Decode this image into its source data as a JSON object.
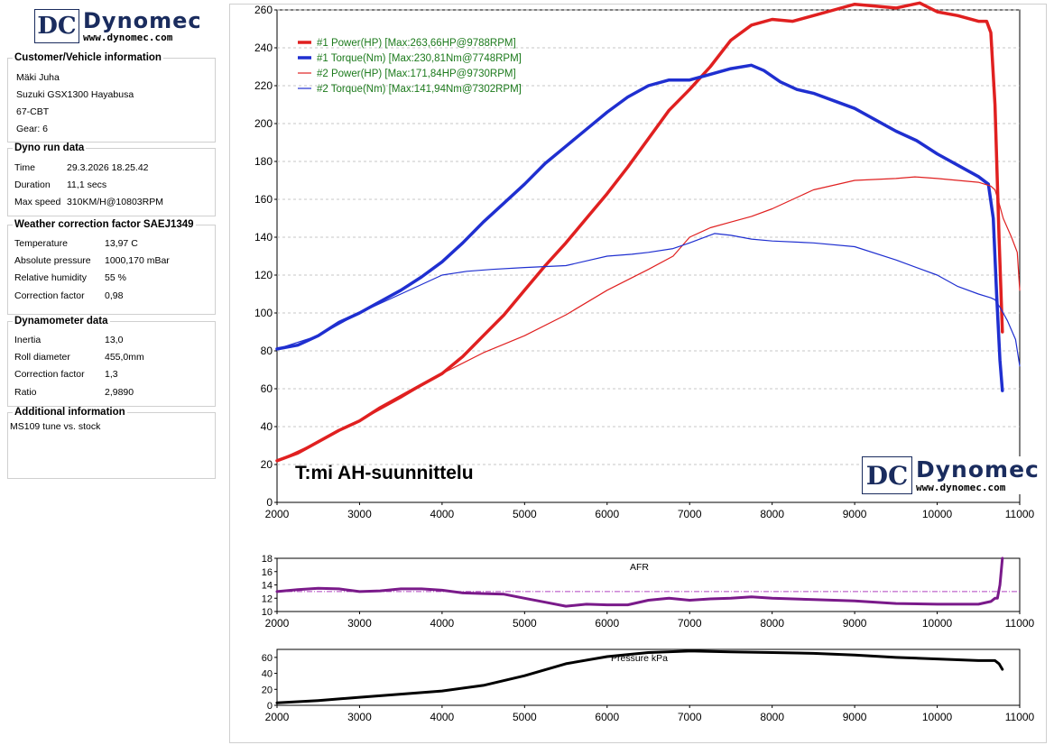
{
  "brand": {
    "name": "Dynomec",
    "url": "www.dynomec.com",
    "mark": "DC"
  },
  "customer": {
    "title": "Customer/Vehicle information",
    "lines": [
      "Mäki Juha",
      "Suzuki GSX1300 Hayabusa",
      "67-CBT",
      "Gear: 6"
    ]
  },
  "run": {
    "title": "Dyno run data",
    "rows": [
      {
        "k": "Time",
        "v": "29.3.2026 18.25.42"
      },
      {
        "k": "Duration",
        "v": "11,1 secs"
      },
      {
        "k": "Max speed",
        "v": "310KM/H@10803RPM"
      }
    ]
  },
  "weather": {
    "title": "Weather correction factor SAEJ1349",
    "rows": [
      {
        "k": "Temperature",
        "v": "13,97 C"
      },
      {
        "k": "Absolute pressure",
        "v": "1000,170 mBar"
      },
      {
        "k": "Relative humidity",
        "v": "55 %"
      },
      {
        "k": "Correction factor",
        "v": "0,98"
      }
    ]
  },
  "dyno": {
    "title": "Dynamometer data",
    "rows": [
      {
        "k": "Inertia",
        "v": "13,0"
      },
      {
        "k": "Roll diameter",
        "v": "455,0mm"
      },
      {
        "k": "Correction factor",
        "v": "1,3"
      },
      {
        "k": "Ratio",
        "v": "2,9890"
      }
    ]
  },
  "additional": {
    "title": "Additional information",
    "text": "MS109 tune vs. stock"
  },
  "watermark": "T:mi AH-suunnittelu",
  "colors": {
    "red": "#e02020",
    "blue": "#1f2fd0",
    "purple": "#7a1a8a",
    "black": "#000000",
    "navy": "#1a2c5e"
  },
  "chart_data": [
    {
      "type": "line",
      "title": "",
      "xlabel": "",
      "ylabel": "",
      "xlim": [
        2000,
        11000
      ],
      "ylim": [
        0,
        260
      ],
      "xticks": [
        2000,
        3000,
        4000,
        5000,
        6000,
        7000,
        8000,
        9000,
        10000,
        11000
      ],
      "yticks": [
        0,
        20,
        40,
        60,
        80,
        100,
        120,
        140,
        160,
        180,
        200,
        220,
        240,
        260
      ],
      "grid": "horizontal dashed",
      "legend": "top-left",
      "series": [
        {
          "name": "#1 Power(HP)",
          "legend": "#1 Power(HP)  [Max:263,66HP@9788RPM]",
          "color": "#e02020",
          "width": 3.5,
          "x": [
            2000,
            2250,
            2500,
            2750,
            3000,
            3250,
            3500,
            3750,
            4000,
            4250,
            4500,
            4750,
            5000,
            5250,
            5500,
            5750,
            6000,
            6250,
            6500,
            6750,
            7000,
            7250,
            7500,
            7750,
            8000,
            8250,
            8500,
            8750,
            9000,
            9250,
            9500,
            9788,
            10000,
            10250,
            10500,
            10600,
            10650,
            10700,
            10750,
            10790
          ],
          "y": [
            22,
            26,
            32,
            38,
            43,
            50,
            56,
            62,
            68,
            77,
            88,
            99,
            112,
            125,
            137,
            150,
            163,
            177,
            192,
            207,
            218,
            230,
            244,
            252,
            255,
            254,
            257,
            260,
            263,
            262,
            261,
            263.66,
            259,
            257,
            254,
            254,
            248,
            210,
            140,
            90
          ]
        },
        {
          "name": "#1 Torque(Nm)",
          "legend": "#1 Torque(Nm)  [Max:230,81Nm@7748RPM]",
          "color": "#1f2fd0",
          "width": 3.5,
          "x": [
            2000,
            2250,
            2500,
            2750,
            3000,
            3250,
            3500,
            3750,
            4000,
            4250,
            4500,
            4750,
            5000,
            5250,
            5500,
            5750,
            6000,
            6250,
            6500,
            6750,
            7000,
            7250,
            7500,
            7748,
            7900,
            8100,
            8300,
            8500,
            8750,
            9000,
            9250,
            9500,
            9750,
            10000,
            10250,
            10500,
            10620,
            10680,
            10720,
            10760,
            10790
          ],
          "y": [
            81,
            83,
            88,
            95,
            100,
            106,
            112,
            119,
            127,
            137,
            148,
            158,
            168,
            179,
            188,
            197,
            206,
            214,
            220,
            223,
            223,
            226,
            229,
            230.81,
            228,
            222,
            218,
            216,
            212,
            208,
            202,
            196,
            191,
            184,
            178,
            172,
            168,
            150,
            110,
            75,
            59
          ]
        },
        {
          "name": "#2 Power(HP)",
          "legend": "#2 Power(HP)  [Max:171,84HP@9730RPM]",
          "color": "#e02020",
          "width": 1.2,
          "x": [
            2000,
            2500,
            3000,
            3500,
            4000,
            4500,
            5000,
            5500,
            6000,
            6500,
            6800,
            7000,
            7250,
            7500,
            7750,
            8000,
            8500,
            9000,
            9500,
            9730,
            10000,
            10250,
            10500,
            10650,
            10700,
            10750,
            10800,
            10900,
            10970,
            11000
          ],
          "y": [
            22,
            32,
            43,
            55,
            68,
            79,
            88,
            99,
            112,
            123,
            130,
            140,
            145,
            148,
            151,
            155,
            165,
            170,
            171,
            171.84,
            171,
            170,
            169,
            167,
            165,
            158,
            150,
            140,
            132,
            112
          ]
        },
        {
          "name": "#2 Torque(Nm)",
          "legend": "#2 Torque(Nm)  [Max:141,94Nm@7302RPM]",
          "color": "#1f2fd0",
          "width": 1.2,
          "x": [
            2000,
            2500,
            3000,
            3500,
            4000,
            4300,
            4600,
            5000,
            5500,
            5800,
            6000,
            6300,
            6500,
            6800,
            7000,
            7302,
            7500,
            7750,
            8000,
            8500,
            9000,
            9500,
            10000,
            10250,
            10500,
            10650,
            10700,
            10760,
            10800,
            10850,
            10950,
            11000
          ],
          "y": [
            81,
            88,
            100,
            110,
            120,
            122,
            123,
            124,
            125,
            128,
            130,
            131,
            132,
            134,
            137,
            141.94,
            141,
            139,
            138,
            137,
            135,
            128,
            120,
            114,
            110,
            108,
            107,
            103,
            100,
            96,
            86,
            72
          ]
        }
      ]
    },
    {
      "type": "line",
      "title": "AFR",
      "xlim": [
        2000,
        11000
      ],
      "ylim": [
        10,
        18
      ],
      "xticks": [
        2000,
        3000,
        4000,
        5000,
        6000,
        7000,
        8000,
        9000,
        10000,
        11000
      ],
      "yticks": [
        10,
        12,
        14,
        16,
        18
      ],
      "reference_line": 13,
      "series": [
        {
          "name": "AFR",
          "color": "#7a1a8a",
          "x": [
            2000,
            2250,
            2500,
            2750,
            3000,
            3250,
            3500,
            3750,
            4000,
            4250,
            4500,
            4750,
            5000,
            5250,
            5500,
            5750,
            6000,
            6250,
            6500,
            6750,
            7000,
            7250,
            7500,
            7750,
            8000,
            8500,
            9000,
            9500,
            10000,
            10500,
            10650,
            10700,
            10730,
            10760,
            10790
          ],
          "y": [
            13,
            13.3,
            13.5,
            13.4,
            13,
            13.1,
            13.4,
            13.4,
            13.2,
            12.8,
            12.7,
            12.6,
            12,
            11.4,
            10.8,
            11.1,
            11,
            11,
            11.7,
            12,
            11.7,
            11.9,
            12,
            12.2,
            12,
            11.8,
            11.6,
            11.2,
            11.1,
            11.1,
            11.5,
            12,
            12,
            14,
            18
          ]
        }
      ]
    },
    {
      "type": "line",
      "title": "Pressure kPa",
      "xlim": [
        2000,
        11000
      ],
      "ylim": [
        0,
        70
      ],
      "xticks": [
        2000,
        3000,
        4000,
        5000,
        6000,
        7000,
        8000,
        9000,
        10000,
        11000
      ],
      "yticks": [
        0,
        20,
        40,
        60
      ],
      "series": [
        {
          "name": "Pressure kPa",
          "color": "#000000",
          "x": [
            2000,
            2500,
            3000,
            3500,
            4000,
            4500,
            5000,
            5500,
            6000,
            6500,
            7000,
            7500,
            8000,
            8500,
            9000,
            9500,
            10000,
            10500,
            10700,
            10750,
            10790
          ],
          "y": [
            3,
            6,
            10,
            14,
            18,
            25,
            37,
            52,
            61,
            66,
            68,
            67,
            66,
            65,
            63,
            60,
            58,
            56,
            56,
            52,
            45
          ]
        }
      ]
    }
  ]
}
